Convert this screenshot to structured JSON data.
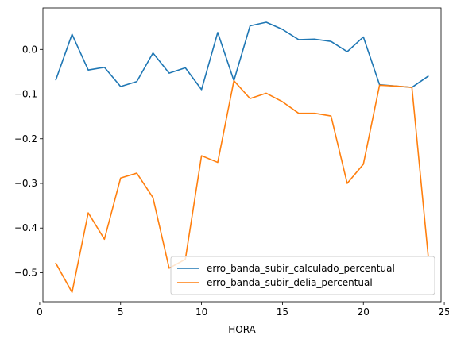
{
  "chart_data": {
    "type": "line",
    "title": "",
    "xlabel": "HORA",
    "ylabel": "",
    "xlim": [
      0.2,
      24.8
    ],
    "ylim": [
      -0.565,
      0.093
    ],
    "xticks": [
      0,
      5,
      10,
      15,
      20,
      25
    ],
    "yticks": [
      0.0,
      -0.1,
      -0.2,
      -0.3,
      -0.4,
      -0.5
    ],
    "xtick_labels": [
      "0",
      "5",
      "10",
      "15",
      "20",
      "25"
    ],
    "ytick_labels": [
      "0.0",
      "−0.1",
      "−0.2",
      "−0.3",
      "−0.4",
      "−0.5"
    ],
    "legend_position": "lower-right",
    "grid": false,
    "x": [
      1,
      2,
      3,
      4,
      5,
      6,
      7,
      8,
      9,
      10,
      11,
      12,
      13,
      14,
      15,
      16,
      17,
      18,
      19,
      20,
      21,
      22,
      23,
      24
    ],
    "series": [
      {
        "name": "erro_banda_subir_calculado_percentual",
        "color": "#1f77b4",
        "values": [
          -0.068,
          0.034,
          -0.046,
          -0.04,
          -0.083,
          -0.072,
          -0.008,
          -0.053,
          -0.041,
          -0.09,
          0.038,
          -0.07,
          0.053,
          0.061,
          0.045,
          0.022,
          0.023,
          0.018,
          -0.005,
          0.028,
          -0.079,
          -0.082,
          -0.085,
          -0.06
        ]
      },
      {
        "name": "erro_banda_subir_delia_percentual",
        "color": "#ff7f0e",
        "values": [
          -0.479,
          -0.544,
          -0.366,
          -0.425,
          -0.288,
          -0.277,
          -0.332,
          -0.49,
          -0.47,
          -0.238,
          -0.253,
          -0.07,
          -0.11,
          -0.098,
          -0.117,
          -0.143,
          -0.143,
          -0.149,
          -0.3,
          -0.257,
          -0.08,
          -0.082,
          -0.085,
          -0.461
        ]
      }
    ]
  }
}
